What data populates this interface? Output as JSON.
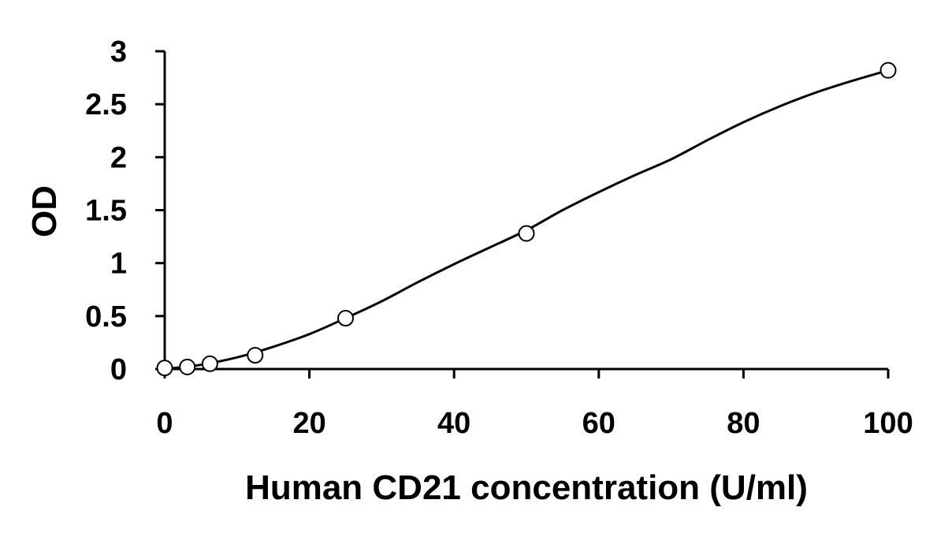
{
  "chart_data": {
    "type": "scatter",
    "title": "",
    "xlabel": "Human CD21 concentration (U/ml)",
    "ylabel": "OD",
    "xlim": [
      0,
      100
    ],
    "ylim": [
      0,
      3
    ],
    "xticks": [
      0,
      20,
      40,
      60,
      80,
      100
    ],
    "yticks": [
      0,
      0.5,
      1,
      1.5,
      2,
      2.5,
      3
    ],
    "xtick_labels": [
      "0",
      "20",
      "40",
      "60",
      "80",
      "100"
    ],
    "ytick_labels": [
      "0",
      "0.5",
      "1",
      "1.5",
      "2",
      "2.5",
      "3"
    ],
    "grid": false,
    "legend": "none",
    "series": [
      {
        "x": [
          0,
          3.125,
          6.25,
          12.5,
          25,
          50,
          100
        ],
        "y": [
          0.01,
          0.02,
          0.05,
          0.13,
          0.48,
          1.28,
          2.82
        ],
        "marker": "open-circle",
        "color": "#000000"
      }
    ],
    "fit_curve": {
      "x": [
        0,
        5,
        10,
        15,
        20,
        25,
        30,
        35,
        40,
        45,
        50,
        55,
        60,
        65,
        70,
        75,
        80,
        85,
        90,
        95,
        100
      ],
      "y": [
        0.0,
        0.04,
        0.11,
        0.21,
        0.33,
        0.48,
        0.64,
        0.82,
        0.99,
        1.15,
        1.31,
        1.5,
        1.67,
        1.83,
        1.98,
        2.16,
        2.33,
        2.48,
        2.61,
        2.72,
        2.82
      ],
      "color": "#000000"
    }
  }
}
